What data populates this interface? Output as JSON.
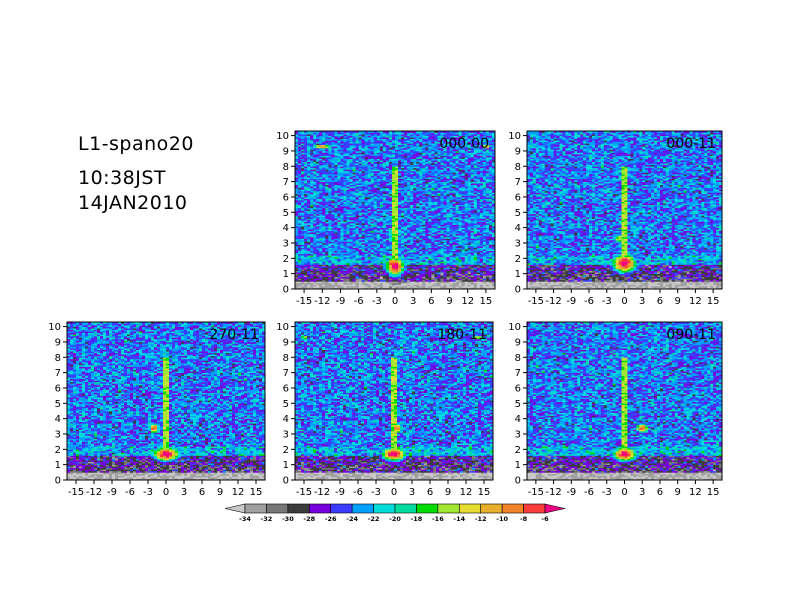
{
  "header": {
    "line1": "L1-spano20",
    "line2": "10:38JST",
    "line3": "14JAN2010"
  },
  "chart_data": {
    "type": "heatmap",
    "x_ticks": [
      -15,
      -12,
      -9,
      -6,
      -3,
      0,
      3,
      6,
      9,
      12,
      15
    ],
    "x_tick_labels": [
      "-15",
      "-12",
      "-9",
      "-6",
      "-3",
      "0",
      "3",
      "6",
      "9",
      "12",
      "15"
    ],
    "y_ticks": [
      0,
      1,
      2,
      3,
      4,
      5,
      6,
      7,
      8,
      9,
      10
    ],
    "xlim": [
      -16.5,
      16.5
    ],
    "ylim": [
      0,
      10.3
    ],
    "grid": false,
    "panels": [
      {
        "title": "000-00",
        "cores": [
          [
            0,
            1.5,
            1.8,
            0.7,
            1.0
          ],
          [
            0,
            3.3,
            1.0,
            0.35,
            0.7
          ],
          [
            -12,
            9.3,
            1.8,
            0.12,
            0.9
          ],
          [
            15,
            9.3,
            0.8,
            0.12,
            0.9
          ],
          [
            0,
            6.4,
            0.8,
            0.25,
            0.4
          ]
        ]
      },
      {
        "title": "000-11",
        "cores": [
          [
            0,
            1.7,
            2.3,
            0.7,
            1.0
          ],
          [
            -1,
            3.3,
            1.0,
            0.35,
            0.7
          ],
          [
            -9,
            9.3,
            0.8,
            0.12,
            0.5
          ],
          [
            -4,
            9.3,
            1.2,
            0.12,
            0.5
          ],
          [
            0,
            6.4,
            0.8,
            0.25,
            0.4
          ]
        ]
      },
      {
        "title": "270-11",
        "cores": [
          [
            0,
            1.7,
            2.5,
            0.5,
            1.0
          ],
          [
            -2,
            3.4,
            1.0,
            0.35,
            0.9
          ],
          [
            -6,
            6.5,
            0.9,
            0.25,
            0.4
          ],
          [
            9,
            9.3,
            2.5,
            0.12,
            0.5
          ]
        ]
      },
      {
        "title": "180-11",
        "cores": [
          [
            0,
            1.7,
            2.3,
            0.5,
            1.0
          ],
          [
            0.5,
            3.4,
            1.0,
            0.35,
            0.9
          ],
          [
            -15,
            9.3,
            0.8,
            0.12,
            0.8
          ],
          [
            14,
            9.3,
            1.5,
            0.12,
            0.8
          ],
          [
            0,
            6.4,
            0.8,
            0.25,
            0.4
          ]
        ]
      },
      {
        "title": "090-11",
        "cores": [
          [
            0,
            1.7,
            2.3,
            0.5,
            1.0
          ],
          [
            3,
            3.4,
            1.2,
            0.35,
            0.9
          ],
          [
            -6,
            9.3,
            3.5,
            0.12,
            0.5
          ],
          [
            8,
            6.6,
            1.0,
            0.25,
            0.5
          ],
          [
            0,
            6.4,
            0.8,
            0.25,
            0.4
          ]
        ]
      }
    ],
    "colorbar": {
      "labels": [
        "-34",
        "-32",
        "-30",
        "-28",
        "-26",
        "-24",
        "-22",
        "-20",
        "-18",
        "-16",
        "-14",
        "-12",
        "-10",
        "-8",
        "-6"
      ],
      "colors": [
        "#c8c8c8",
        "#a0a0a0",
        "#787878",
        "#3c3c3c",
        "#7800dc",
        "#3c3cff",
        "#00a0ff",
        "#00dcdc",
        "#00dca0",
        "#00dc00",
        "#a0e632",
        "#e6dc32",
        "#e6af2d",
        "#f08228",
        "#fa3c3c",
        "#f00082"
      ]
    }
  }
}
